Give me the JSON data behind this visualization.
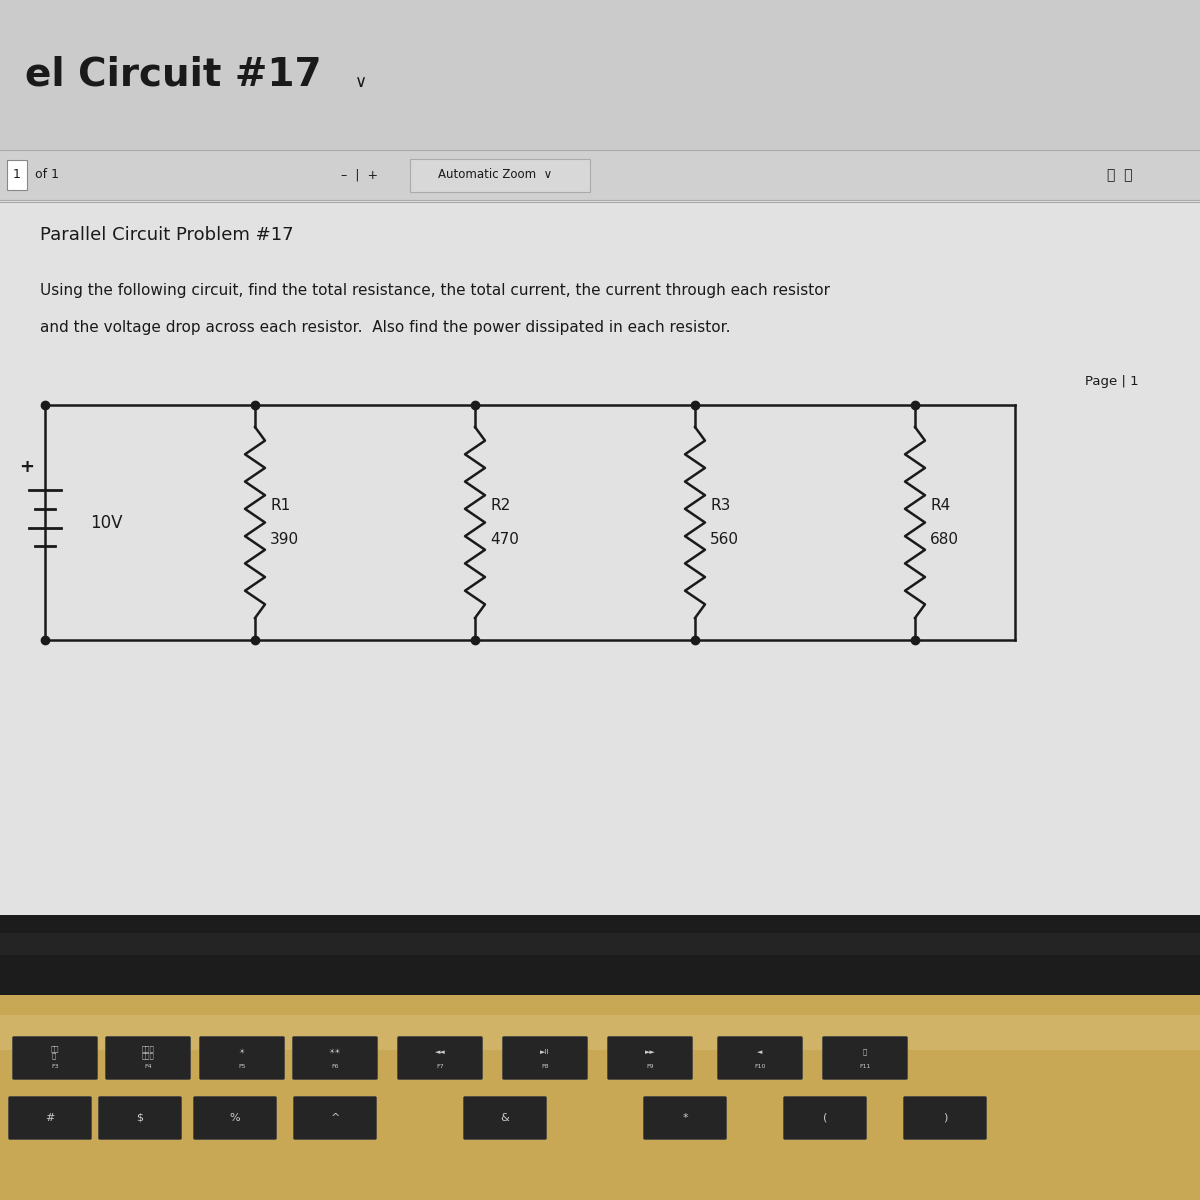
{
  "title": "Parallel Circuit Problem #17",
  "header_text": "el Circuit #17",
  "description_line1": "Using the following circuit, find the total resistance, the total current, the current through each resistor",
  "description_line2": "and the voltage drop across each resistor.  Also find the power dissipated in each resistor.",
  "page_label": "Page | 1",
  "voltage": "10V",
  "resistors": [
    {
      "name": "R1",
      "value": "390"
    },
    {
      "name": "R2",
      "value": "470"
    },
    {
      "name": "R3",
      "value": "560"
    },
    {
      "name": "R4",
      "value": "680"
    }
  ],
  "screen_bg": "#dcdcdc",
  "pdf_bg": "#e8e8e8",
  "pdf_content_bg": "#e2e2e2",
  "header_bar_bg": "#cbcbcb",
  "toolbar_bg": "#d0d0d0",
  "line_color": "#1a1a1a",
  "text_color": "#1a1a1a",
  "laptop_bezel_color": "#1a1a1a",
  "laptop_body_color": "#b8a070",
  "key_color": "#252525",
  "key_edge_color": "#444444",
  "key_text_color": "#cccccc"
}
